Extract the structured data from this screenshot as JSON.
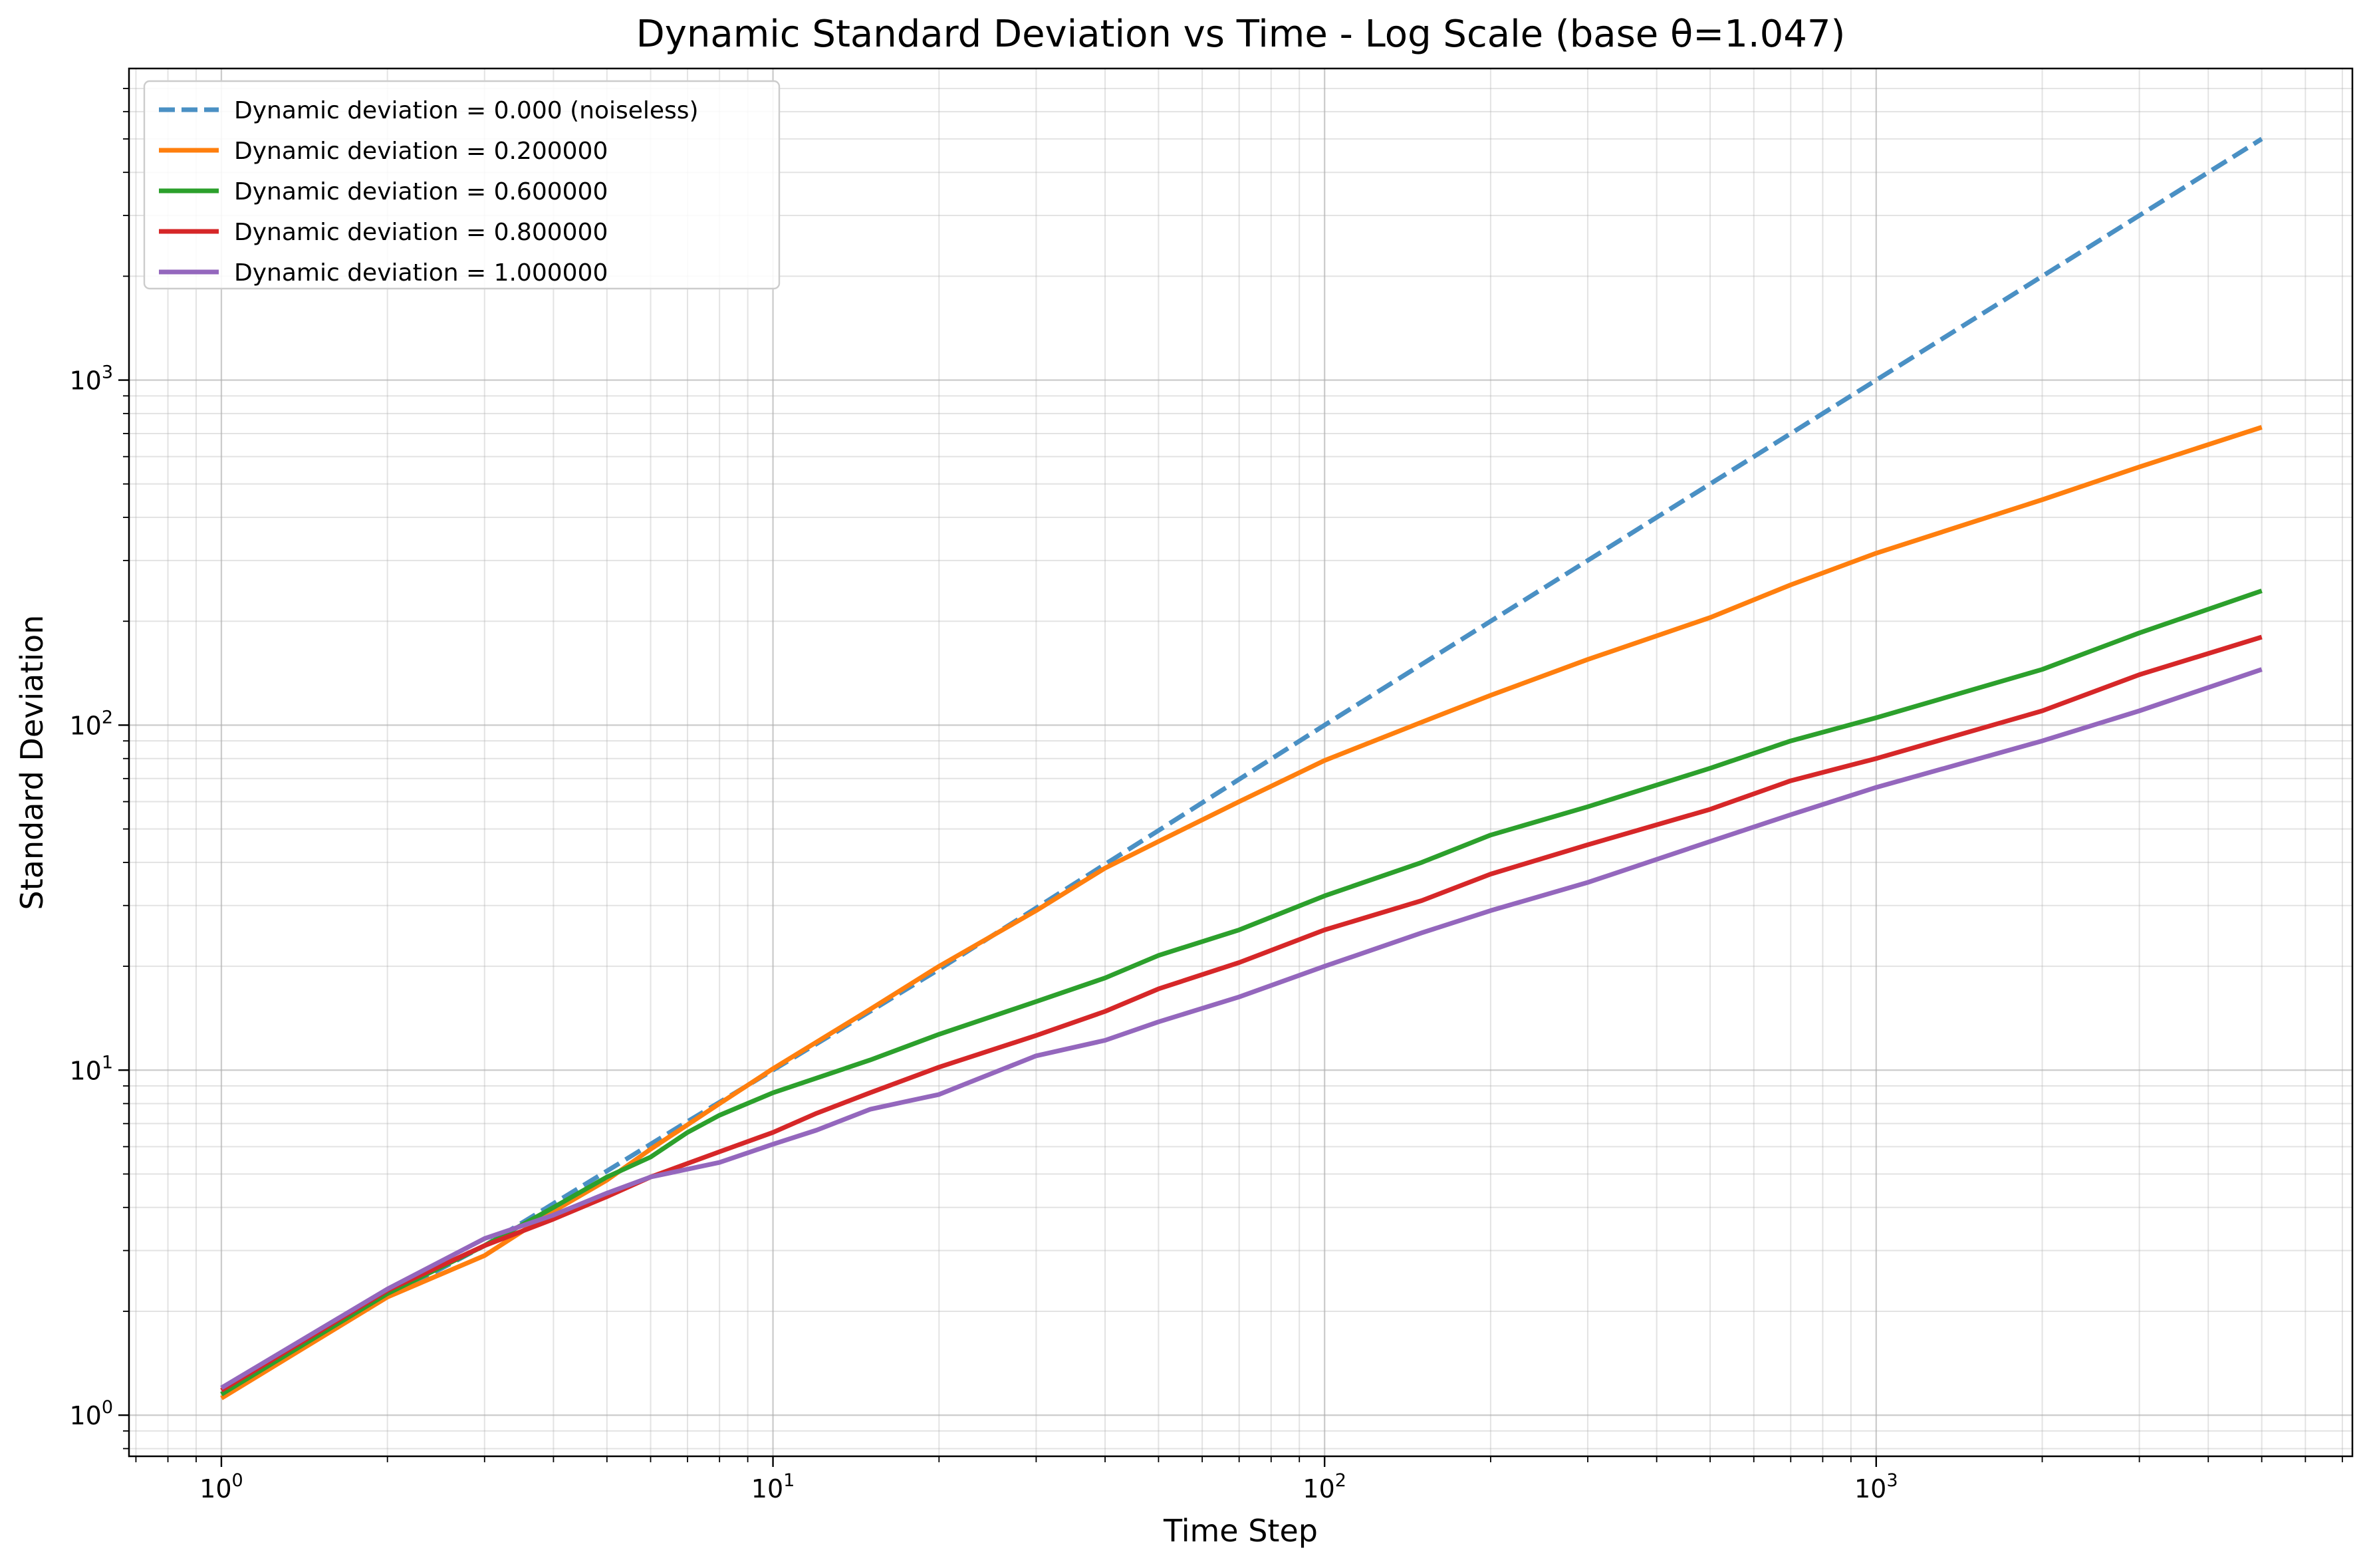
{
  "chart_data": {
    "type": "line",
    "title": "Dynamic Standard Deviation vs Time - Log Scale (base θ=1.047)",
    "xlabel": "Time Step",
    "ylabel": "Standard Deviation",
    "xscale": "log",
    "yscale": "log",
    "xlim": [
      0.68,
      7300
    ],
    "ylim": [
      0.76,
      8000
    ],
    "x_ticks": [
      {
        "value": 1,
        "base": "10",
        "exp": "0"
      },
      {
        "value": 10,
        "base": "10",
        "exp": "1"
      },
      {
        "value": 100,
        "base": "10",
        "exp": "2"
      },
      {
        "value": 1000,
        "base": "10",
        "exp": "3"
      }
    ],
    "y_ticks": [
      {
        "value": 1,
        "base": "10",
        "exp": "0"
      },
      {
        "value": 10,
        "base": "10",
        "exp": "1"
      },
      {
        "value": 100,
        "base": "10",
        "exp": "2"
      },
      {
        "value": 1000,
        "base": "10",
        "exp": "3"
      }
    ],
    "grid": true,
    "legend_position": "top-left",
    "series": [
      {
        "name": "Dynamic deviation = 0.000 (noiseless)",
        "color": "#4a90c4",
        "dashed": true,
        "points": [
          [
            1,
            1.15
          ],
          [
            2,
            2.2
          ],
          [
            3,
            3.1
          ],
          [
            5,
            5.1
          ],
          [
            7,
            7.1
          ],
          [
            10,
            10
          ],
          [
            15,
            14.8
          ],
          [
            20,
            19.6
          ],
          [
            30,
            29.5
          ],
          [
            40,
            39.5
          ],
          [
            50,
            49.5
          ],
          [
            100,
            100
          ],
          [
            200,
            200
          ],
          [
            500,
            500
          ],
          [
            1000,
            1000
          ],
          [
            2000,
            2000
          ],
          [
            5000,
            5000
          ]
        ]
      },
      {
        "name": "Dynamic deviation = 0.200000",
        "color": "#ff7f0e",
        "dashed": false,
        "points": [
          [
            1,
            1.12
          ],
          [
            2,
            2.2
          ],
          [
            3,
            2.9
          ],
          [
            4,
            3.9
          ],
          [
            5,
            4.8
          ],
          [
            6,
            5.9
          ],
          [
            8,
            8.0
          ],
          [
            10,
            10.1
          ],
          [
            15,
            15
          ],
          [
            20,
            20
          ],
          [
            30,
            29
          ],
          [
            40,
            38.5
          ],
          [
            50,
            46
          ],
          [
            70,
            60
          ],
          [
            100,
            79
          ],
          [
            150,
            102
          ],
          [
            200,
            122
          ],
          [
            300,
            155
          ],
          [
            500,
            205
          ],
          [
            700,
            255
          ],
          [
            1000,
            315
          ],
          [
            2000,
            450
          ],
          [
            3000,
            560
          ],
          [
            5000,
            730
          ]
        ]
      },
      {
        "name": "Dynamic deviation = 0.600000",
        "color": "#2ca02c",
        "dashed": false,
        "points": [
          [
            1,
            1.15
          ],
          [
            2,
            2.25
          ],
          [
            3,
            3.1
          ],
          [
            4,
            4.0
          ],
          [
            5,
            4.9
          ],
          [
            6,
            5.6
          ],
          [
            7,
            6.6
          ],
          [
            8,
            7.4
          ],
          [
            10,
            8.6
          ],
          [
            15,
            10.7
          ],
          [
            20,
            12.7
          ],
          [
            30,
            15.8
          ],
          [
            40,
            18.5
          ],
          [
            50,
            21.5
          ],
          [
            70,
            25.5
          ],
          [
            100,
            32
          ],
          [
            150,
            40
          ],
          [
            200,
            48
          ],
          [
            300,
            58
          ],
          [
            500,
            75
          ],
          [
            700,
            90
          ],
          [
            1000,
            105
          ],
          [
            2000,
            145
          ],
          [
            3000,
            185
          ],
          [
            5000,
            245
          ]
        ]
      },
      {
        "name": "Dynamic deviation = 0.800000",
        "color": "#d62728",
        "dashed": false,
        "points": [
          [
            1,
            1.18
          ],
          [
            2,
            2.3
          ],
          [
            3,
            3.1
          ],
          [
            4,
            3.7
          ],
          [
            5,
            4.3
          ],
          [
            6,
            4.9
          ],
          [
            8,
            5.8
          ],
          [
            10,
            6.6
          ],
          [
            12,
            7.5
          ],
          [
            15,
            8.6
          ],
          [
            20,
            10.2
          ],
          [
            30,
            12.6
          ],
          [
            40,
            14.8
          ],
          [
            50,
            17.2
          ],
          [
            70,
            20.5
          ],
          [
            100,
            25.5
          ],
          [
            150,
            31
          ],
          [
            200,
            37
          ],
          [
            300,
            45
          ],
          [
            500,
            57
          ],
          [
            700,
            69
          ],
          [
            1000,
            80
          ],
          [
            2000,
            110
          ],
          [
            3000,
            140
          ],
          [
            5000,
            180
          ]
        ]
      },
      {
        "name": "Dynamic deviation = 1.000000",
        "color": "#9467bd",
        "dashed": false,
        "points": [
          [
            1,
            1.2
          ],
          [
            2,
            2.32
          ],
          [
            3,
            3.25
          ],
          [
            4,
            3.8
          ],
          [
            5,
            4.4
          ],
          [
            6,
            4.9
          ],
          [
            8,
            5.4
          ],
          [
            10,
            6.1
          ],
          [
            12,
            6.7
          ],
          [
            15,
            7.7
          ],
          [
            18,
            8.2
          ],
          [
            20,
            8.5
          ],
          [
            25,
            9.8
          ],
          [
            30,
            11.0
          ],
          [
            40,
            12.2
          ],
          [
            50,
            13.8
          ],
          [
            70,
            16.3
          ],
          [
            100,
            20
          ],
          [
            150,
            25
          ],
          [
            200,
            29
          ],
          [
            300,
            35
          ],
          [
            500,
            46
          ],
          [
            700,
            55
          ],
          [
            1000,
            66
          ],
          [
            2000,
            90
          ],
          [
            3000,
            110
          ],
          [
            5000,
            145
          ]
        ]
      }
    ]
  }
}
